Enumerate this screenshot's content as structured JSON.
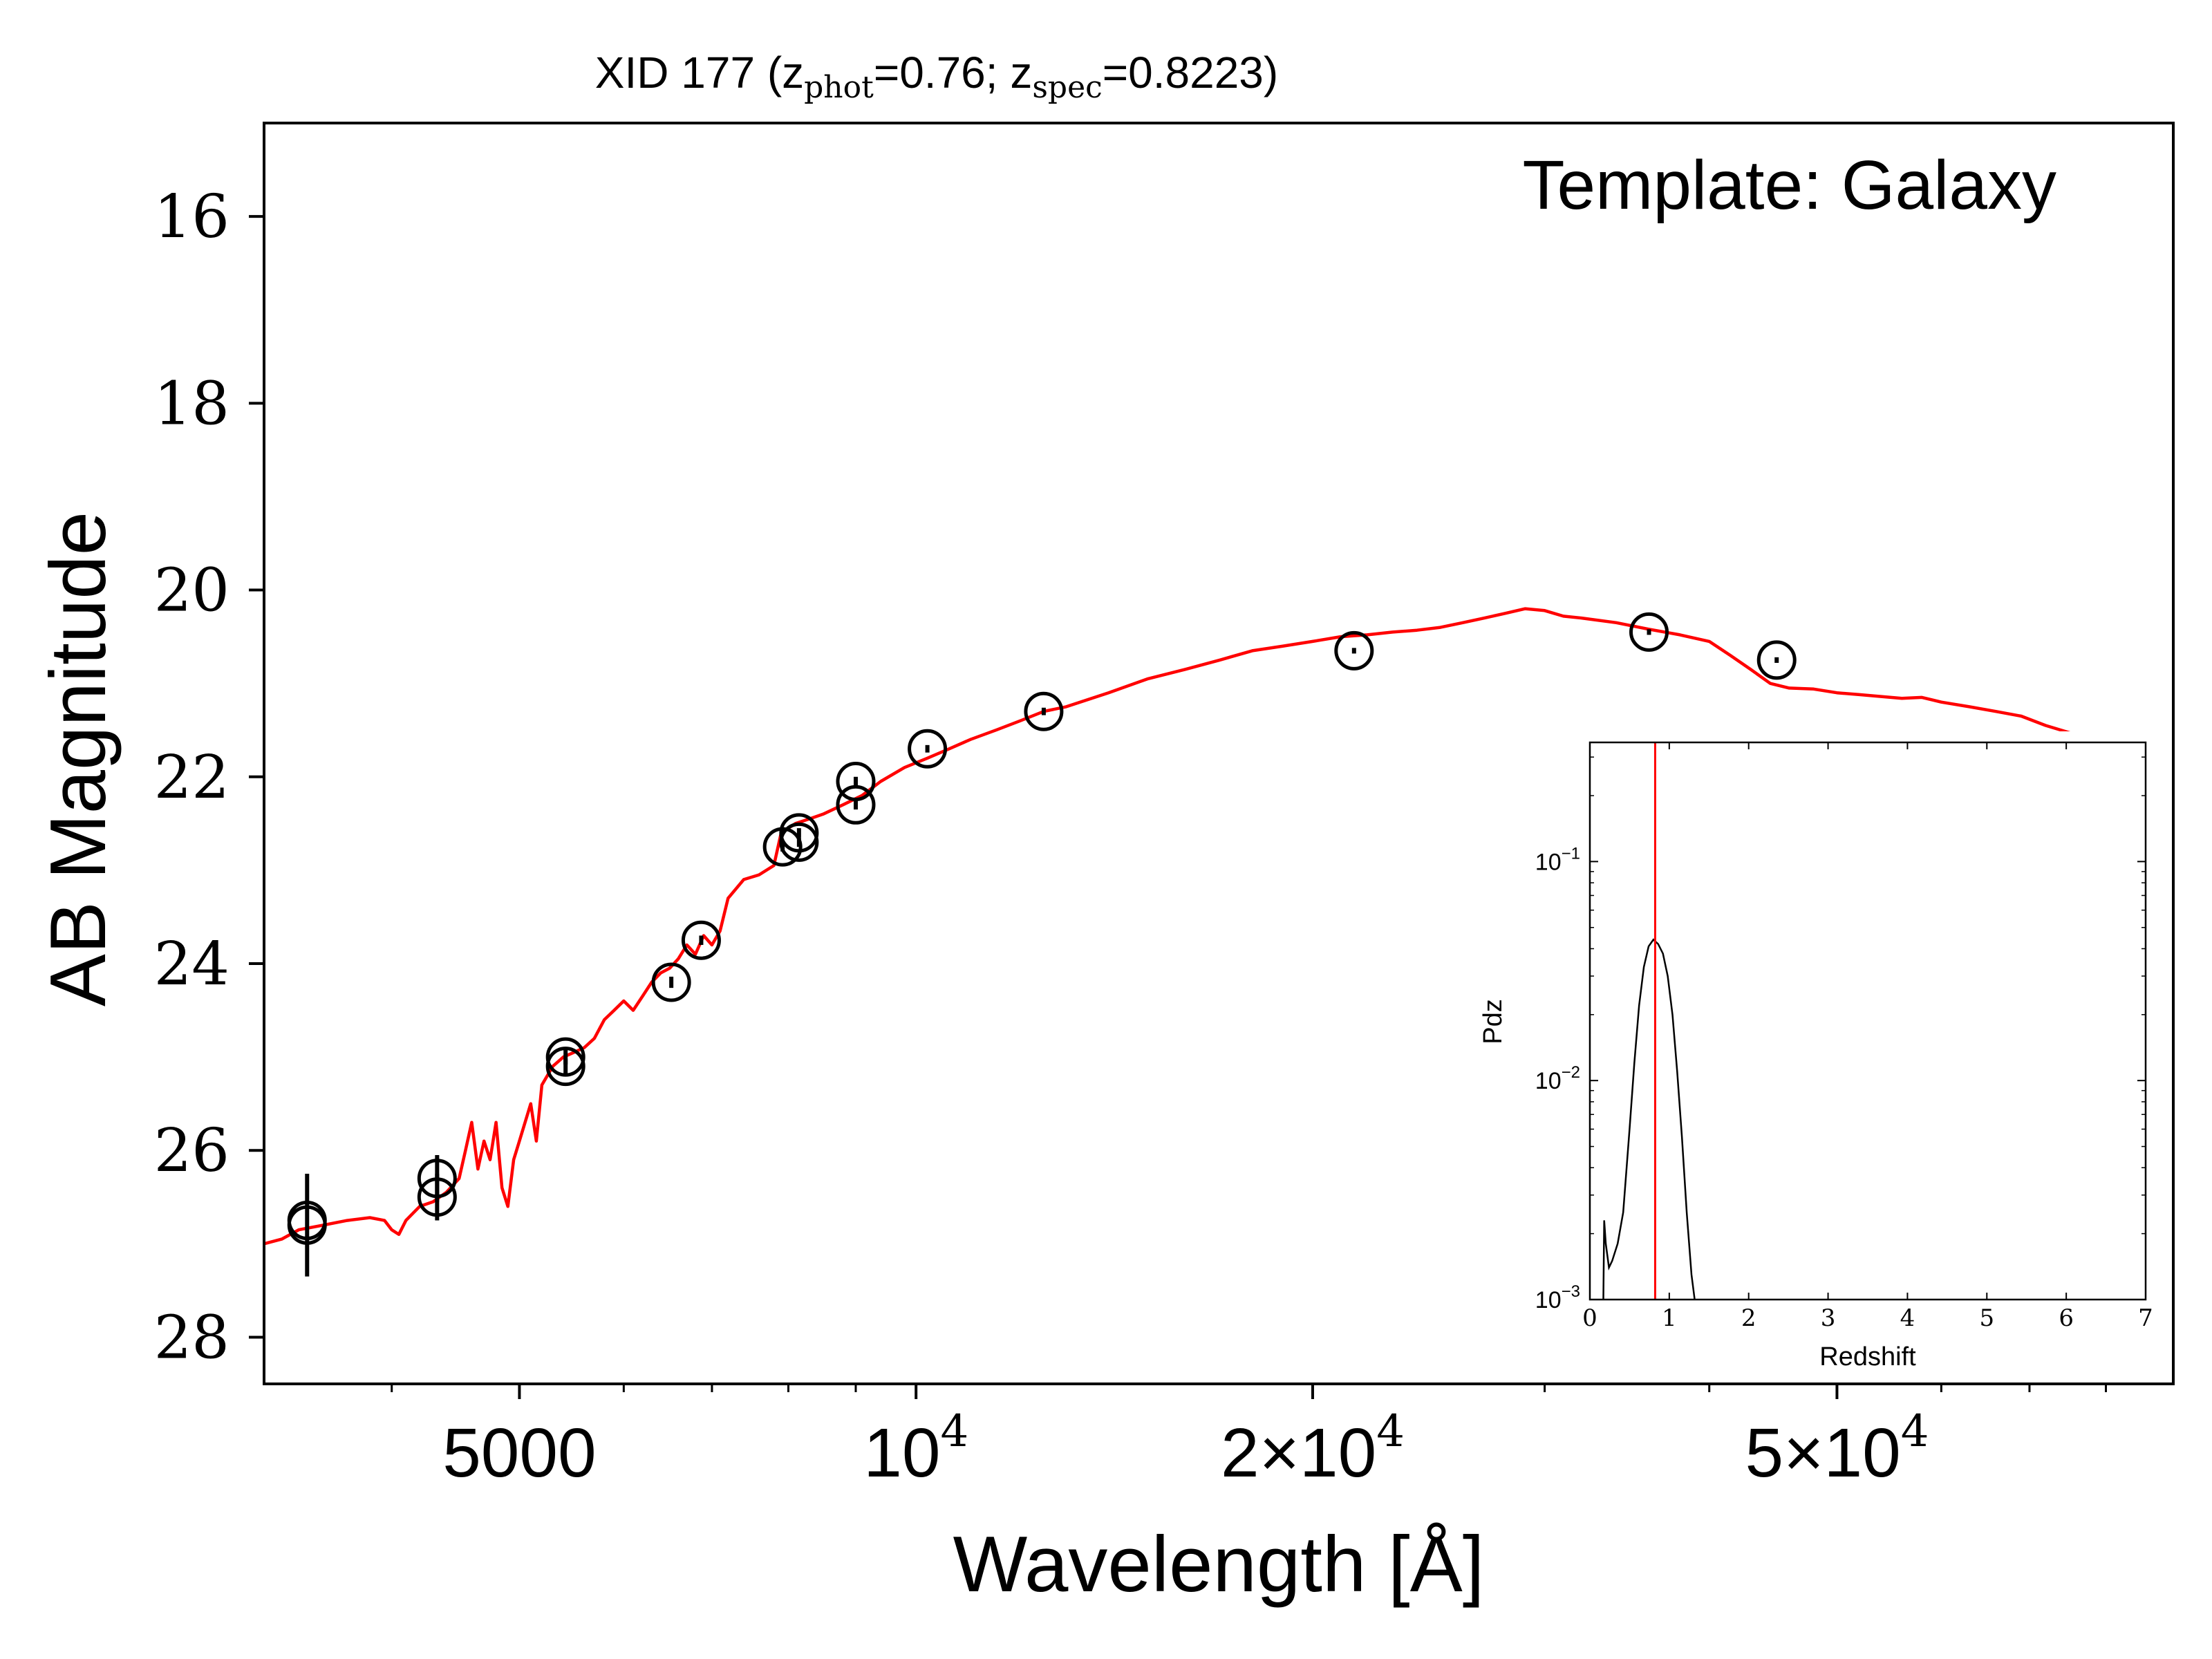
{
  "chart_data": [
    {
      "type": "line",
      "title": {
        "prefix": "XID 177 (z",
        "sub1": "phot",
        "mid": "=0.76; z",
        "sub2": "spec",
        "suffix": "=0.8223)"
      },
      "annotation": "Template: Galaxy",
      "xlabel": "Wavelength [Å]",
      "ylabel": "AB Magnitude",
      "x_scale": "log",
      "xlim": [
        3200,
        90000
      ],
      "ylim": [
        28.5,
        15.0
      ],
      "y_inverted": true,
      "grid": false,
      "x_ticks": [
        {
          "value": 5000,
          "label": "5000"
        },
        {
          "value": 10000,
          "label": "10",
          "sup": "4"
        },
        {
          "value": 20000,
          "label": "2×10",
          "sup": "4"
        },
        {
          "value": 50000,
          "label": "5×10",
          "sup": "4"
        }
      ],
      "y_ticks": [
        {
          "value": 16,
          "label": "16"
        },
        {
          "value": 18,
          "label": "18"
        },
        {
          "value": 20,
          "label": "20"
        },
        {
          "value": 22,
          "label": "22"
        },
        {
          "value": 24,
          "label": "24"
        },
        {
          "value": 26,
          "label": "26"
        },
        {
          "value": 28,
          "label": "28"
        }
      ],
      "series": [
        {
          "kind": "template-spectrum",
          "color": "#ff0000",
          "points": [
            [
              3200,
              27.0
            ],
            [
              3300,
              26.95
            ],
            [
              3400,
              26.85
            ],
            [
              3550,
              26.8
            ],
            [
              3700,
              26.75
            ],
            [
              3850,
              26.72
            ],
            [
              3950,
              26.75
            ],
            [
              4000,
              26.85
            ],
            [
              4050,
              26.9
            ],
            [
              4100,
              26.75
            ],
            [
              4200,
              26.6
            ],
            [
              4300,
              26.55
            ],
            [
              4400,
              26.45
            ],
            [
              4500,
              26.3
            ],
            [
              4550,
              26.0
            ],
            [
              4600,
              25.7
            ],
            [
              4650,
              26.2
            ],
            [
              4700,
              25.9
            ],
            [
              4750,
              26.1
            ],
            [
              4800,
              25.7
            ],
            [
              4850,
              26.4
            ],
            [
              4900,
              26.6
            ],
            [
              4950,
              26.1
            ],
            [
              5000,
              25.9
            ],
            [
              5100,
              25.5
            ],
            [
              5150,
              25.9
            ],
            [
              5200,
              25.3
            ],
            [
              5300,
              25.1
            ],
            [
              5400,
              25.0
            ],
            [
              5500,
              24.95
            ],
            [
              5600,
              24.9
            ],
            [
              5700,
              24.8
            ],
            [
              5800,
              24.6
            ],
            [
              5900,
              24.5
            ],
            [
              6000,
              24.4
            ],
            [
              6100,
              24.5
            ],
            [
              6200,
              24.35
            ],
            [
              6300,
              24.2
            ],
            [
              6400,
              24.1
            ],
            [
              6500,
              24.05
            ],
            [
              6600,
              23.95
            ],
            [
              6700,
              23.8
            ],
            [
              6800,
              23.9
            ],
            [
              6900,
              23.7
            ],
            [
              7000,
              23.8
            ],
            [
              7100,
              23.65
            ],
            [
              7200,
              23.3
            ],
            [
              7400,
              23.1
            ],
            [
              7600,
              23.05
            ],
            [
              7800,
              22.95
            ],
            [
              7900,
              22.6
            ],
            [
              8100,
              22.5
            ],
            [
              8300,
              22.45
            ],
            [
              8500,
              22.4
            ],
            [
              8800,
              22.3
            ],
            [
              9100,
              22.2
            ],
            [
              9400,
              22.05
            ],
            [
              9800,
              21.9
            ],
            [
              10200,
              21.8
            ],
            [
              10600,
              21.7
            ],
            [
              11000,
              21.6
            ],
            [
              11500,
              21.5
            ],
            [
              12000,
              21.4
            ],
            [
              12500,
              21.3
            ],
            [
              13000,
              21.25
            ],
            [
              14000,
              21.1
            ],
            [
              15000,
              20.95
            ],
            [
              16000,
              20.85
            ],
            [
              17000,
              20.75
            ],
            [
              18000,
              20.65
            ],
            [
              19000,
              20.6
            ],
            [
              20000,
              20.55
            ],
            [
              21000,
              20.5
            ],
            [
              22000,
              20.48
            ],
            [
              23000,
              20.45
            ],
            [
              24000,
              20.43
            ],
            [
              25000,
              20.4
            ],
            [
              26000,
              20.35
            ],
            [
              27000,
              20.3
            ],
            [
              28000,
              20.25
            ],
            [
              29000,
              20.2
            ],
            [
              30000,
              20.22
            ],
            [
              31000,
              20.28
            ],
            [
              32000,
              20.3
            ],
            [
              34000,
              20.35
            ],
            [
              36000,
              20.42
            ],
            [
              38000,
              20.48
            ],
            [
              40000,
              20.55
            ],
            [
              41500,
              20.7
            ],
            [
              43000,
              20.85
            ],
            [
              44500,
              21.0
            ],
            [
              46000,
              21.05
            ],
            [
              48000,
              21.06
            ],
            [
              50000,
              21.1
            ],
            [
              52000,
              21.12
            ],
            [
              54000,
              21.14
            ],
            [
              56000,
              21.16
            ],
            [
              58000,
              21.15
            ],
            [
              60000,
              21.2
            ],
            [
              63000,
              21.25
            ],
            [
              66000,
              21.3
            ],
            [
              69000,
              21.35
            ],
            [
              72000,
              21.45
            ],
            [
              76000,
              21.55
            ],
            [
              80000,
              21.7
            ],
            [
              84000,
              21.8
            ],
            [
              88000,
              21.88
            ],
            [
              90000,
              21.9
            ]
          ]
        },
        {
          "kind": "photometry",
          "marker": "open-circle",
          "color": "#000000",
          "points": [
            {
              "x": 3450,
              "y": 26.8,
              "yerr": 0.55
            },
            {
              "x": 3450,
              "y": 26.75,
              "yerr": 0
            },
            {
              "x": 4330,
              "y": 26.5,
              "yerr": 0.25
            },
            {
              "x": 4330,
              "y": 26.3,
              "yerr": 0.25
            },
            {
              "x": 5420,
              "y": 25.1,
              "yerr": 0.08
            },
            {
              "x": 5420,
              "y": 25.0,
              "yerr": 0.08
            },
            {
              "x": 6520,
              "y": 24.2,
              "yerr": 0.06
            },
            {
              "x": 6870,
              "y": 23.75,
              "yerr": 0.05
            },
            {
              "x": 7920,
              "y": 22.75,
              "yerr": 0.05
            },
            {
              "x": 8150,
              "y": 22.7,
              "yerr": 0.05
            },
            {
              "x": 8150,
              "y": 22.6,
              "yerr": 0.05
            },
            {
              "x": 9000,
              "y": 22.3,
              "yerr": 0.05
            },
            {
              "x": 9000,
              "y": 22.05,
              "yerr": 0.05
            },
            {
              "x": 10200,
              "y": 21.7,
              "yerr": 0.04
            },
            {
              "x": 12500,
              "y": 21.3,
              "yerr": 0.04
            },
            {
              "x": 21500,
              "y": 20.65,
              "yerr": 0.03
            },
            {
              "x": 36000,
              "y": 20.45,
              "yerr": 0.03
            },
            {
              "x": 45000,
              "y": 20.75,
              "yerr": 0.03
            }
          ]
        }
      ]
    },
    {
      "type": "line",
      "role": "inset",
      "xlabel": "Redshift",
      "ylabel": "Pdz",
      "xlim": [
        0,
        7
      ],
      "ylim": [
        0.001,
        0.35
      ],
      "y_scale": "log",
      "x_ticks": [
        "0",
        "1",
        "2",
        "3",
        "4",
        "5",
        "6",
        "7"
      ],
      "y_ticks": [
        {
          "value": 0.001,
          "base": "10",
          "sup": "−3"
        },
        {
          "value": 0.01,
          "base": "10",
          "sup": "−2"
        },
        {
          "value": 0.1,
          "base": "10",
          "sup": "−1"
        }
      ],
      "vline": {
        "x": 0.8223,
        "color": "#ff0000"
      },
      "series": [
        {
          "name": "",
          "color": "#000000",
          "points": [
            [
              0.17,
              0.001
            ],
            [
              0.18,
              0.0023
            ],
            [
              0.2,
              0.0018
            ],
            [
              0.24,
              0.0014
            ],
            [
              0.28,
              0.0015
            ],
            [
              0.35,
              0.0018
            ],
            [
              0.42,
              0.0025
            ],
            [
              0.5,
              0.006
            ],
            [
              0.56,
              0.012
            ],
            [
              0.62,
              0.022
            ],
            [
              0.68,
              0.033
            ],
            [
              0.74,
              0.041
            ],
            [
              0.8,
              0.044
            ],
            [
              0.86,
              0.042
            ],
            [
              0.92,
              0.038
            ],
            [
              0.98,
              0.03
            ],
            [
              1.04,
              0.02
            ],
            [
              1.1,
              0.011
            ],
            [
              1.16,
              0.0055
            ],
            [
              1.22,
              0.0025
            ],
            [
              1.28,
              0.0013
            ],
            [
              1.32,
              0.001
            ]
          ]
        }
      ]
    }
  ]
}
